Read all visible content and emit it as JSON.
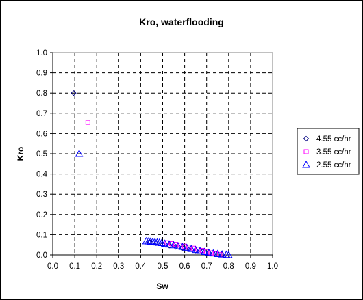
{
  "chart_data": {
    "type": "scatter",
    "title": "Kro, waterflooding",
    "xlabel": "Sw",
    "ylabel": "Kro",
    "xlim": [
      0.0,
      1.0
    ],
    "ylim": [
      0.0,
      1.0
    ],
    "xticks": [
      "0.0",
      "0.1",
      "0.2",
      "0.3",
      "0.4",
      "0.5",
      "0.6",
      "0.7",
      "0.8",
      "0.9",
      "1.0"
    ],
    "yticks": [
      "0.0",
      "0.1",
      "0.2",
      "0.3",
      "0.4",
      "0.5",
      "0.6",
      "0.7",
      "0.8",
      "0.9",
      "1.0"
    ],
    "grid": true,
    "grid_style": "dashed",
    "legend_position": "right",
    "series": [
      {
        "name": "4.55 cc/hr",
        "marker": "diamond",
        "color": "#000080",
        "points": [
          [
            0.095,
            0.8
          ],
          [
            0.44,
            0.065
          ],
          [
            0.47,
            0.058
          ],
          [
            0.5,
            0.052
          ],
          [
            0.53,
            0.046
          ],
          [
            0.56,
            0.04
          ],
          [
            0.59,
            0.034
          ],
          [
            0.62,
            0.028
          ],
          [
            0.65,
            0.022
          ],
          [
            0.68,
            0.016
          ],
          [
            0.71,
            0.01
          ],
          [
            0.74,
            0.005
          ],
          [
            0.77,
            0.002
          ]
        ]
      },
      {
        "name": "3.55 cc/hr",
        "marker": "square",
        "color": "#ff00ff",
        "points": [
          [
            0.16,
            0.655
          ],
          [
            0.52,
            0.06
          ],
          [
            0.54,
            0.056
          ],
          [
            0.56,
            0.052
          ],
          [
            0.58,
            0.048
          ],
          [
            0.6,
            0.043
          ],
          [
            0.62,
            0.038
          ],
          [
            0.64,
            0.033
          ],
          [
            0.66,
            0.028
          ],
          [
            0.68,
            0.022
          ],
          [
            0.7,
            0.016
          ],
          [
            0.72,
            0.01
          ],
          [
            0.74,
            0.005
          ],
          [
            0.76,
            0.002
          ]
        ]
      },
      {
        "name": "2.55 cc/hr",
        "marker": "triangle",
        "color": "#0000ff",
        "points": [
          [
            0.12,
            0.5
          ],
          [
            0.425,
            0.068
          ],
          [
            0.435,
            0.067
          ],
          [
            0.445,
            0.066
          ],
          [
            0.455,
            0.065
          ],
          [
            0.465,
            0.064
          ],
          [
            0.475,
            0.062
          ],
          [
            0.485,
            0.061
          ],
          [
            0.495,
            0.059
          ],
          [
            0.51,
            0.056
          ],
          [
            0.53,
            0.052
          ],
          [
            0.55,
            0.048
          ],
          [
            0.57,
            0.044
          ],
          [
            0.59,
            0.04
          ],
          [
            0.61,
            0.035
          ],
          [
            0.63,
            0.03
          ],
          [
            0.65,
            0.025
          ],
          [
            0.67,
            0.02
          ],
          [
            0.69,
            0.015
          ],
          [
            0.71,
            0.011
          ],
          [
            0.73,
            0.008
          ],
          [
            0.75,
            0.005
          ],
          [
            0.77,
            0.003
          ],
          [
            0.79,
            0.001
          ],
          [
            0.8,
            0.0
          ]
        ]
      }
    ]
  }
}
